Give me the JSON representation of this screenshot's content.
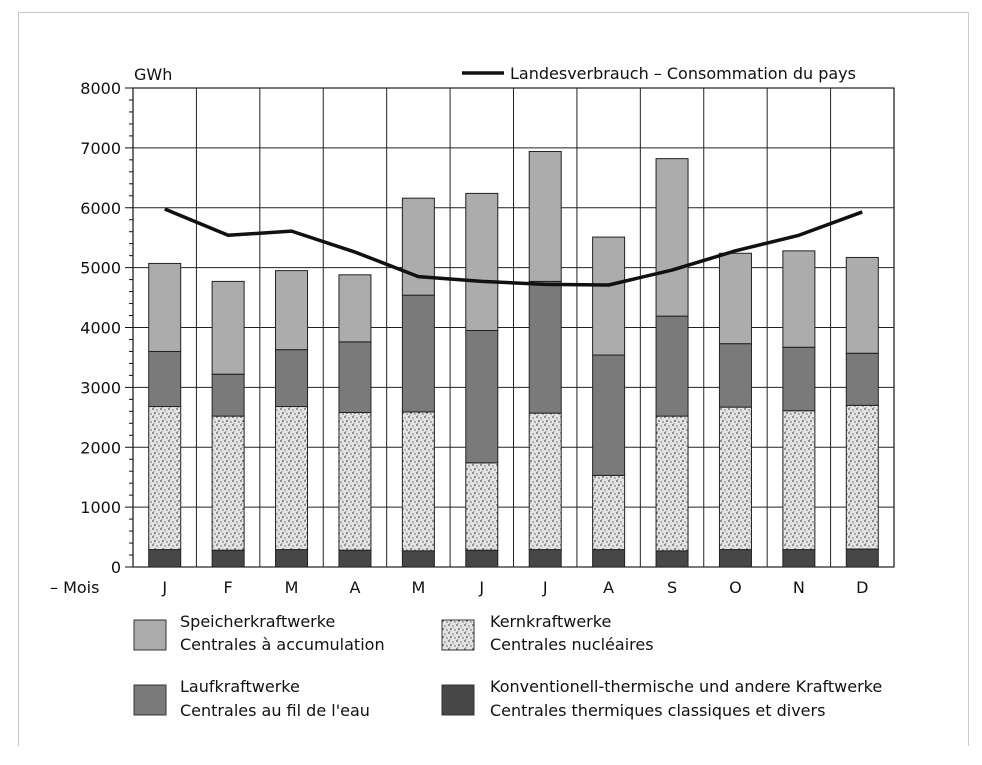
{
  "chart_data": {
    "type": "bar",
    "stacked": true,
    "unit_label": "GWh",
    "x_axis_prefix": "– Mois",
    "categories": [
      "J",
      "F",
      "M",
      "A",
      "M",
      "J",
      "J",
      "A",
      "S",
      "O",
      "N",
      "D"
    ],
    "ylim": [
      0,
      8000
    ],
    "yticks": [
      0,
      1000,
      2000,
      3000,
      4000,
      5000,
      6000,
      7000,
      8000
    ],
    "grid": true,
    "series": [
      {
        "key": "thermal",
        "name_line1": "Konventionell-thermische und andere Kraftwerke",
        "name_line2": "Centrales thermiques classiques et divers",
        "color": "#474747",
        "values": [
          290,
          280,
          290,
          280,
          270,
          280,
          290,
          290,
          270,
          290,
          290,
          300
        ]
      },
      {
        "key": "nuclear",
        "name_line1": "Kernkraftwerke",
        "name_line2": "Centrales nucléaires",
        "color": "#c8c8c8",
        "pattern": "speckled",
        "values": [
          2390,
          2240,
          2390,
          2300,
          2320,
          1460,
          2280,
          1240,
          2250,
          2380,
          2320,
          2400
        ]
      },
      {
        "key": "runofriver",
        "name_line1": "Laufkraftwerke",
        "name_line2": "Centrales au fil de l'eau",
        "color": "#7a7a7a",
        "values": [
          920,
          700,
          950,
          1180,
          1950,
          2210,
          2200,
          2010,
          1670,
          1060,
          1060,
          870
        ]
      },
      {
        "key": "storage",
        "name_line1": "Speicherkraftwerke",
        "name_line2": "Centrales à accumulation",
        "color": "#acacac",
        "values": [
          1470,
          1550,
          1320,
          1120,
          1620,
          2290,
          2170,
          1970,
          2630,
          1510,
          1610,
          1600
        ]
      }
    ],
    "line_series": {
      "name": "Landesverbrauch – Consommation du pays",
      "color": "#111111",
      "values": [
        5980,
        5540,
        5610,
        5260,
        4850,
        4770,
        4720,
        4710,
        4960,
        5280,
        5540,
        5930
      ]
    },
    "legend_order": [
      "storage",
      "nuclear",
      "runofriver",
      "thermal"
    ]
  }
}
